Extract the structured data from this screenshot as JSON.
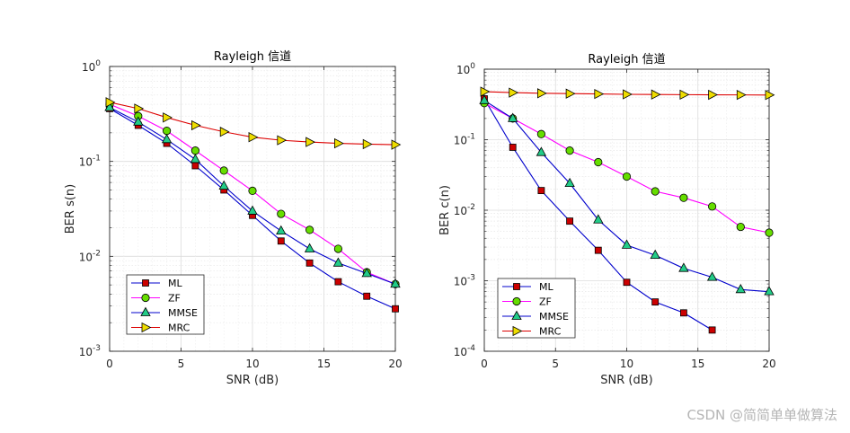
{
  "watermark": "CSDN @简简单单做算法",
  "chart_data": [
    {
      "type": "line",
      "title": "Rayleigh 信道",
      "xlabel": "SNR (dB)",
      "ylabel": "BER s(n)",
      "xlim": [
        0,
        20
      ],
      "ylim": [
        0.001,
        1
      ],
      "yscale": "log",
      "x_ticks": [
        "0",
        "5",
        "10",
        "15",
        "20"
      ],
      "y_ticks": [
        {
          "base": "10",
          "exp": "0"
        },
        {
          "base": "10",
          "exp": "-1"
        },
        {
          "base": "10",
          "exp": "-2"
        },
        {
          "base": "10",
          "exp": "-3"
        }
      ],
      "legend_position": "bottom-left",
      "series": [
        {
          "name": "ML",
          "color": "#0000cc",
          "marker": "square",
          "marker_color": "#cc0000",
          "x": [
            0,
            2,
            4,
            6,
            8,
            10,
            12,
            14,
            16,
            18,
            20
          ],
          "values": [
            0.36,
            0.24,
            0.155,
            0.09,
            0.05,
            0.027,
            0.0145,
            0.0085,
            0.0054,
            0.0038,
            0.0028
          ]
        },
        {
          "name": "ZF",
          "color": "#ff00ff",
          "marker": "circle",
          "marker_color": "#66dd00",
          "x": [
            0,
            2,
            4,
            6,
            8,
            10,
            12,
            14,
            16,
            18,
            20
          ],
          "values": [
            0.4,
            0.3,
            0.21,
            0.13,
            0.08,
            0.049,
            0.028,
            0.019,
            0.012,
            0.0068,
            0.0051
          ]
        },
        {
          "name": "MMSE",
          "color": "#0000cc",
          "marker": "triangle",
          "marker_color": "#22cc88",
          "x": [
            0,
            2,
            4,
            6,
            8,
            10,
            12,
            14,
            16,
            18,
            20
          ],
          "values": [
            0.37,
            0.26,
            0.17,
            0.105,
            0.055,
            0.03,
            0.0185,
            0.012,
            0.0085,
            0.0066,
            0.0051
          ]
        },
        {
          "name": "MRC",
          "color": "#dd0000",
          "marker": "triangle-right",
          "marker_color": "#eedd00",
          "x": [
            0,
            2,
            4,
            6,
            8,
            10,
            12,
            14,
            16,
            18,
            20
          ],
          "values": [
            0.42,
            0.36,
            0.29,
            0.24,
            0.205,
            0.18,
            0.167,
            0.16,
            0.155,
            0.152,
            0.15
          ]
        }
      ]
    },
    {
      "type": "line",
      "title": "Rayleigh 信道",
      "xlabel": "SNR (dB)",
      "ylabel": "BER c(n)",
      "xlim": [
        0,
        20
      ],
      "ylim": [
        0.0001,
        1
      ],
      "yscale": "log",
      "x_ticks": [
        "0",
        "5",
        "10",
        "15",
        "20"
      ],
      "y_ticks": [
        {
          "base": "10",
          "exp": "0"
        },
        {
          "base": "10",
          "exp": "-1"
        },
        {
          "base": "10",
          "exp": "-2"
        },
        {
          "base": "10",
          "exp": "-3"
        },
        {
          "base": "10",
          "exp": "-4"
        }
      ],
      "legend_position": "bottom-left",
      "series": [
        {
          "name": "ML",
          "color": "#0000cc",
          "marker": "square",
          "marker_color": "#cc0000",
          "x": [
            0,
            2,
            4,
            6,
            8,
            10,
            12,
            14,
            16
          ],
          "values": [
            0.38,
            0.078,
            0.019,
            0.007,
            0.0027,
            0.00095,
            0.0005,
            0.00035,
            0.0002
          ]
        },
        {
          "name": "ZF",
          "color": "#ff00ff",
          "marker": "circle",
          "marker_color": "#66dd00",
          "x": [
            0,
            2,
            4,
            6,
            8,
            10,
            12,
            14,
            16,
            18,
            20
          ],
          "values": [
            0.33,
            0.2,
            0.12,
            0.07,
            0.048,
            0.03,
            0.0185,
            0.015,
            0.0113,
            0.0058,
            0.0048
          ]
        },
        {
          "name": "MMSE",
          "color": "#0000cc",
          "marker": "triangle",
          "marker_color": "#22cc88",
          "x": [
            0,
            2,
            4,
            6,
            8,
            10,
            12,
            14,
            16,
            18,
            20
          ],
          "values": [
            0.36,
            0.2,
            0.066,
            0.024,
            0.0073,
            0.0032,
            0.0023,
            0.0015,
            0.00112,
            0.00075,
            0.0007
          ]
        },
        {
          "name": "MRC",
          "color": "#dd0000",
          "marker": "triangle-right",
          "marker_color": "#eedd00",
          "x": [
            0,
            2,
            4,
            6,
            8,
            10,
            12,
            14,
            16,
            18,
            20
          ],
          "values": [
            0.48,
            0.465,
            0.455,
            0.45,
            0.445,
            0.44,
            0.437,
            0.435,
            0.433,
            0.432,
            0.43
          ]
        }
      ]
    }
  ]
}
